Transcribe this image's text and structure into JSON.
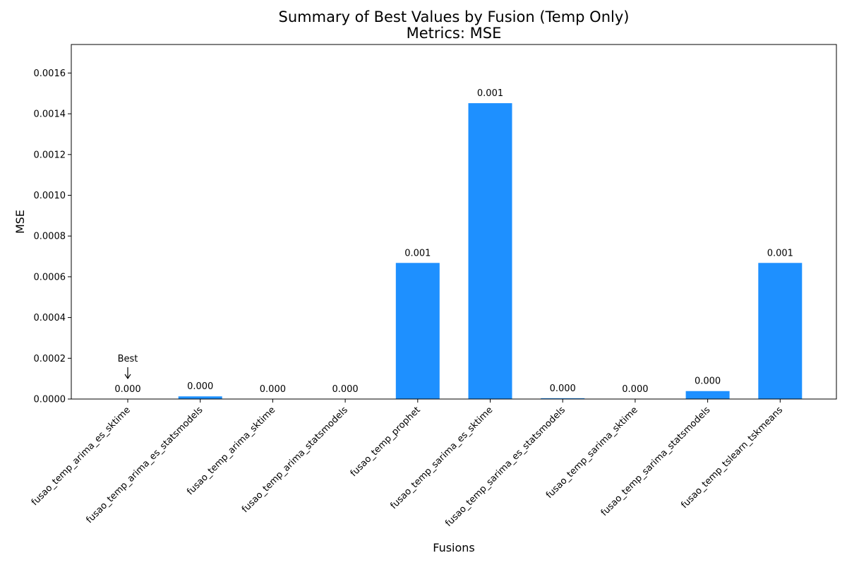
{
  "chart_data": {
    "type": "bar",
    "title": "Summary of Best Values by Fusion (Temp Only)",
    "subtitle": "Metrics: MSE",
    "xlabel": "Fusions",
    "ylabel": "MSE",
    "ylim": [
      0,
      0.00174
    ],
    "yticks": [
      "0.0000",
      "0.0002",
      "0.0004",
      "0.0006",
      "0.0008",
      "0.0010",
      "0.0012",
      "0.0014",
      "0.0016"
    ],
    "ytick_values": [
      0,
      0.0002,
      0.0004,
      0.0006,
      0.0008,
      0.001,
      0.0012,
      0.0014,
      0.0016
    ],
    "grid": false,
    "categories": [
      "fusao_temp_arima_es_sktime",
      "fusao_temp_arima_es_statsmodels",
      "fusao_temp_arima_sktime",
      "fusao_temp_arima_statsmodels",
      "fusao_temp_prophet",
      "fusao_temp_sarima_es_sktime",
      "fusao_temp_sarima_es_statsmodels",
      "fusao_temp_sarima_sktime",
      "fusao_temp_sarima_statsmodels",
      "fusao_temp_tslearn_tskmeans"
    ],
    "values": [
      2e-07,
      1.3e-05,
      3e-07,
      3e-07,
      0.000668,
      0.001452,
      4e-06,
      3e-07,
      3.9e-05,
      0.000668
    ],
    "data_labels": [
      "0.000",
      "0.000",
      "0.000",
      "0.000",
      "0.001",
      "0.001",
      "0.000",
      "0.000",
      "0.000",
      "0.001"
    ],
    "best_index": 0,
    "best_annotation": "Best",
    "colors": {
      "bar": "#1e90ff",
      "best_label": "#008000",
      "text": "#000000"
    }
  }
}
